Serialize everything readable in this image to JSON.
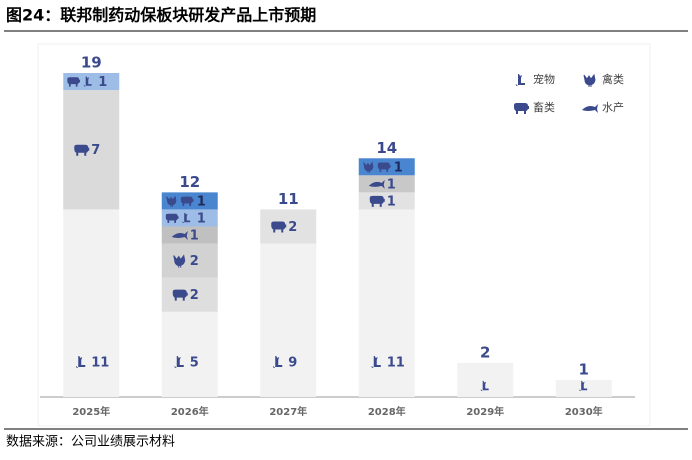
{
  "chart_data": {
    "type": "stacked-icon-bar",
    "title": "图24：联邦制药动保板块研发产品上市预期",
    "source": "数据来源：公司业绩展示材料",
    "legend": [
      "宠物",
      "禽类",
      "畜类",
      "水产"
    ],
    "categories": [
      "2025年",
      "2026年",
      "2027年",
      "2028年",
      "2029年",
      "2030年"
    ],
    "totals": [
      19,
      12,
      11,
      14,
      2,
      1
    ],
    "ylim": [
      0,
      19
    ],
    "bars": [
      {
        "segments": [
          {
            "kinds": [
              0
            ],
            "value": 11,
            "color": "#f2f2f2"
          },
          {
            "kinds": [
              2
            ],
            "value": 7,
            "color": "#dadada"
          },
          {
            "kinds": [
              2,
              0
            ],
            "value": 1,
            "color": "#9dbde6"
          }
        ]
      },
      {
        "segments": [
          {
            "kinds": [
              0
            ],
            "value": 5,
            "color": "#f2f2f2"
          },
          {
            "kinds": [
              2
            ],
            "value": 2,
            "color": "#dedede"
          },
          {
            "kinds": [
              1
            ],
            "value": 2,
            "color": "#d2d2d2"
          },
          {
            "kinds": [
              3
            ],
            "value": 1,
            "color": "#c0c0c0"
          },
          {
            "kinds": [
              2,
              0
            ],
            "value": 1,
            "color": "#9dbde6"
          },
          {
            "kinds": [
              1,
              2
            ],
            "value": 1,
            "color": "#4a86d0"
          }
        ]
      },
      {
        "segments": [
          {
            "kinds": [
              0
            ],
            "value": 9,
            "color": "#f2f2f2"
          },
          {
            "kinds": [
              2
            ],
            "value": 2,
            "color": "#e2e2e2"
          }
        ]
      },
      {
        "segments": [
          {
            "kinds": [
              0
            ],
            "value": 11,
            "color": "#f2f2f2"
          },
          {
            "kinds": [
              2
            ],
            "value": 1,
            "color": "#e2e2e2"
          },
          {
            "kinds": [
              3
            ],
            "value": 1,
            "color": "#c8c8c8"
          },
          {
            "kinds": [
              1,
              2
            ],
            "value": 1,
            "color": "#4a86d0"
          }
        ]
      },
      {
        "segments": [
          {
            "kinds": [
              0
            ],
            "value": 2,
            "color": "#f2f2f2",
            "show_label": false
          }
        ]
      },
      {
        "segments": [
          {
            "kinds": [
              0
            ],
            "value": 1,
            "color": "#f2f2f2",
            "show_label": false
          }
        ]
      }
    ]
  }
}
